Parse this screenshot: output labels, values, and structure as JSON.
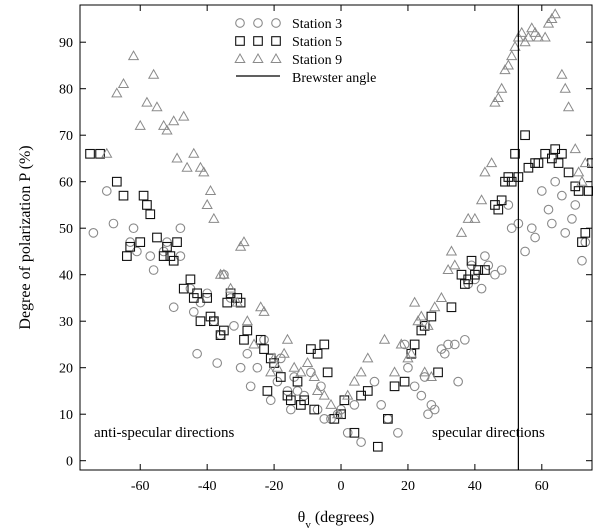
{
  "chart_data": {
    "type": "scatter",
    "xlabel": "θv (degrees)",
    "ylabel": "Degree of polarization P (%)",
    "xlim": [
      -78,
      75
    ],
    "ylim": [
      -2,
      98
    ],
    "x_ticks": [
      -60,
      -40,
      -20,
      0,
      20,
      40,
      60
    ],
    "y_ticks": [
      0,
      10,
      20,
      30,
      40,
      50,
      60,
      70,
      80,
      90
    ],
    "grid": false,
    "legend_position": "top-center",
    "annotations": [
      "anti-specular directions",
      "specular directions"
    ],
    "reference_lines": [
      {
        "name": "Brewster angle",
        "x": 53
      }
    ],
    "series": [
      {
        "name": "Station 3",
        "marker": "circle",
        "points": [
          [
            -74,
            49
          ],
          [
            -70,
            58
          ],
          [
            -68,
            51
          ],
          [
            -63,
            47
          ],
          [
            -62,
            50
          ],
          [
            -61,
            45
          ],
          [
            -57,
            44
          ],
          [
            -56,
            41
          ],
          [
            -53,
            45
          ],
          [
            -52,
            47
          ],
          [
            -50,
            33
          ],
          [
            -48,
            50
          ],
          [
            -48,
            44
          ],
          [
            -45,
            37
          ],
          [
            -44,
            32
          ],
          [
            -43,
            23
          ],
          [
            -42,
            34
          ],
          [
            -40,
            36
          ],
          [
            -38,
            30
          ],
          [
            -37,
            21
          ],
          [
            -36,
            27
          ],
          [
            -35,
            40
          ],
          [
            -33,
            35
          ],
          [
            -32,
            29
          ],
          [
            -30,
            20
          ],
          [
            -28,
            23
          ],
          [
            -27,
            16
          ],
          [
            -25,
            20
          ],
          [
            -23,
            26
          ],
          [
            -21,
            13
          ],
          [
            -19,
            17
          ],
          [
            -18,
            22
          ],
          [
            -16,
            15
          ],
          [
            -15,
            11
          ],
          [
            -14,
            18
          ],
          [
            -13,
            15
          ],
          [
            -11,
            14
          ],
          [
            -9,
            19
          ],
          [
            -7,
            11
          ],
          [
            -6,
            16
          ],
          [
            -5,
            9
          ],
          [
            -3,
            9
          ],
          [
            -1,
            10
          ],
          [
            0,
            11
          ],
          [
            2,
            6
          ],
          [
            4,
            12
          ],
          [
            6,
            4
          ],
          [
            10,
            17
          ],
          [
            12,
            12
          ],
          [
            14,
            9
          ],
          [
            17,
            6
          ],
          [
            19,
            25
          ],
          [
            20,
            20
          ],
          [
            22,
            16
          ],
          [
            24,
            14
          ],
          [
            25,
            18
          ],
          [
            26,
            10
          ],
          [
            27,
            12
          ],
          [
            28,
            11
          ],
          [
            30,
            24
          ],
          [
            31,
            23
          ],
          [
            32,
            25
          ],
          [
            34,
            25
          ],
          [
            35,
            17
          ],
          [
            37,
            26
          ],
          [
            38,
            38
          ],
          [
            39,
            42
          ],
          [
            40,
            39
          ],
          [
            42,
            37
          ],
          [
            43,
            44
          ],
          [
            44,
            42
          ],
          [
            46,
            40
          ],
          [
            48,
            41
          ],
          [
            50,
            55
          ],
          [
            51,
            50
          ],
          [
            53,
            51
          ],
          [
            55,
            45
          ],
          [
            57,
            50
          ],
          [
            58,
            48
          ],
          [
            60,
            58
          ],
          [
            62,
            54
          ],
          [
            63,
            51
          ],
          [
            64,
            60
          ],
          [
            66,
            57
          ],
          [
            67,
            49
          ],
          [
            69,
            52
          ],
          [
            70,
            55
          ],
          [
            72,
            43
          ],
          [
            73,
            47
          ]
        ]
      },
      {
        "name": "Station 5",
        "marker": "square",
        "points": [
          [
            -75,
            66
          ],
          [
            -72,
            66
          ],
          [
            -67,
            60
          ],
          [
            -65,
            57
          ],
          [
            -64,
            44
          ],
          [
            -63,
            46
          ],
          [
            -60,
            47
          ],
          [
            -59,
            57
          ],
          [
            -58,
            55
          ],
          [
            -57,
            53
          ],
          [
            -55,
            48
          ],
          [
            -53,
            44
          ],
          [
            -52,
            46
          ],
          [
            -51,
            44
          ],
          [
            -50,
            43
          ],
          [
            -49,
            47
          ],
          [
            -47,
            37
          ],
          [
            -45,
            39
          ],
          [
            -44,
            35
          ],
          [
            -43,
            36
          ],
          [
            -42,
            30
          ],
          [
            -40,
            35
          ],
          [
            -39,
            31
          ],
          [
            -38,
            30
          ],
          [
            -36,
            27
          ],
          [
            -35,
            28
          ],
          [
            -34,
            34
          ],
          [
            -33,
            36
          ],
          [
            -31,
            35
          ],
          [
            -30,
            34
          ],
          [
            -29,
            26
          ],
          [
            -28,
            28
          ],
          [
            -24,
            26
          ],
          [
            -23,
            24
          ],
          [
            -22,
            15
          ],
          [
            -21,
            22
          ],
          [
            -20,
            21
          ],
          [
            -18,
            18
          ],
          [
            -16,
            14
          ],
          [
            -15,
            13
          ],
          [
            -13,
            17
          ],
          [
            -12,
            12
          ],
          [
            -11,
            13
          ],
          [
            -9,
            24
          ],
          [
            -8,
            11
          ],
          [
            -7,
            23
          ],
          [
            -5,
            25
          ],
          [
            -4,
            19
          ],
          [
            -2,
            9
          ],
          [
            0,
            10
          ],
          [
            1,
            13
          ],
          [
            4,
            6
          ],
          [
            6,
            14
          ],
          [
            8,
            15
          ],
          [
            11,
            3
          ],
          [
            14,
            9
          ],
          [
            16,
            16
          ],
          [
            19,
            17
          ],
          [
            21,
            23
          ],
          [
            22,
            25
          ],
          [
            24,
            28
          ],
          [
            25,
            29
          ],
          [
            27,
            31
          ],
          [
            29,
            19
          ],
          [
            33,
            33
          ],
          [
            36,
            40
          ],
          [
            37,
            38
          ],
          [
            38,
            39
          ],
          [
            39,
            43
          ],
          [
            40,
            40
          ],
          [
            41,
            41
          ],
          [
            43,
            41
          ],
          [
            46,
            55
          ],
          [
            47,
            54
          ],
          [
            48,
            56
          ],
          [
            49,
            60
          ],
          [
            50,
            61
          ],
          [
            51,
            60
          ],
          [
            52,
            66
          ],
          [
            53,
            61
          ],
          [
            55,
            70
          ],
          [
            56,
            63
          ],
          [
            58,
            64
          ],
          [
            59,
            64
          ],
          [
            61,
            66
          ],
          [
            63,
            65
          ],
          [
            64,
            67
          ],
          [
            65,
            64
          ],
          [
            66,
            66
          ],
          [
            68,
            62
          ],
          [
            70,
            59
          ],
          [
            71,
            58
          ],
          [
            72,
            47
          ],
          [
            73,
            49
          ],
          [
            74,
            58
          ],
          [
            75,
            64
          ]
        ]
      },
      {
        "name": "Station 9",
        "marker": "triangle",
        "points": [
          [
            -70,
            66
          ],
          [
            -67,
            79
          ],
          [
            -65,
            81
          ],
          [
            -62,
            87
          ],
          [
            -60,
            72
          ],
          [
            -58,
            77
          ],
          [
            -56,
            83
          ],
          [
            -55,
            76
          ],
          [
            -53,
            72
          ],
          [
            -52,
            71
          ],
          [
            -50,
            73
          ],
          [
            -49,
            65
          ],
          [
            -47,
            74
          ],
          [
            -46,
            63
          ],
          [
            -44,
            66
          ],
          [
            -42,
            63
          ],
          [
            -41,
            62
          ],
          [
            -40,
            55
          ],
          [
            -39,
            58
          ],
          [
            -38,
            52
          ],
          [
            -36,
            40
          ],
          [
            -35,
            40
          ],
          [
            -33,
            37
          ],
          [
            -31,
            34
          ],
          [
            -30,
            46
          ],
          [
            -29,
            47
          ],
          [
            -28,
            30
          ],
          [
            -26,
            25
          ],
          [
            -24,
            33
          ],
          [
            -23,
            32
          ],
          [
            -21,
            19
          ],
          [
            -20,
            22
          ],
          [
            -19,
            20
          ],
          [
            -17,
            23
          ],
          [
            -16,
            26
          ],
          [
            -14,
            20
          ],
          [
            -12,
            19
          ],
          [
            -10,
            21
          ],
          [
            -8,
            18
          ],
          [
            -7,
            15
          ],
          [
            -5,
            14
          ],
          [
            -3,
            12
          ],
          [
            -1,
            10
          ],
          [
            2,
            14
          ],
          [
            4,
            17
          ],
          [
            6,
            19
          ],
          [
            8,
            22
          ],
          [
            13,
            26
          ],
          [
            16,
            19
          ],
          [
            18,
            25
          ],
          [
            20,
            22
          ],
          [
            21,
            23
          ],
          [
            22,
            34
          ],
          [
            23,
            30
          ],
          [
            24,
            31
          ],
          [
            25,
            19
          ],
          [
            26,
            29
          ],
          [
            27,
            18
          ],
          [
            28,
            33
          ],
          [
            30,
            35
          ],
          [
            32,
            41
          ],
          [
            33,
            45
          ],
          [
            34,
            42
          ],
          [
            36,
            49
          ],
          [
            38,
            52
          ],
          [
            40,
            52
          ],
          [
            42,
            56
          ],
          [
            43,
            62
          ],
          [
            45,
            64
          ],
          [
            46,
            77
          ],
          [
            47,
            78
          ],
          [
            48,
            80
          ],
          [
            49,
            84
          ],
          [
            50,
            85
          ],
          [
            51,
            87
          ],
          [
            52,
            89
          ],
          [
            53,
            91
          ],
          [
            54,
            92
          ],
          [
            55,
            90
          ],
          [
            56,
            91
          ],
          [
            57,
            93
          ],
          [
            58,
            92
          ],
          [
            59,
            91
          ],
          [
            61,
            91
          ],
          [
            62,
            94
          ],
          [
            63,
            95
          ],
          [
            64,
            96
          ],
          [
            66,
            83
          ],
          [
            67,
            80
          ],
          [
            68,
            76
          ],
          [
            70,
            67
          ],
          [
            71,
            62
          ],
          [
            72,
            60
          ],
          [
            73,
            64
          ]
        ]
      }
    ]
  }
}
